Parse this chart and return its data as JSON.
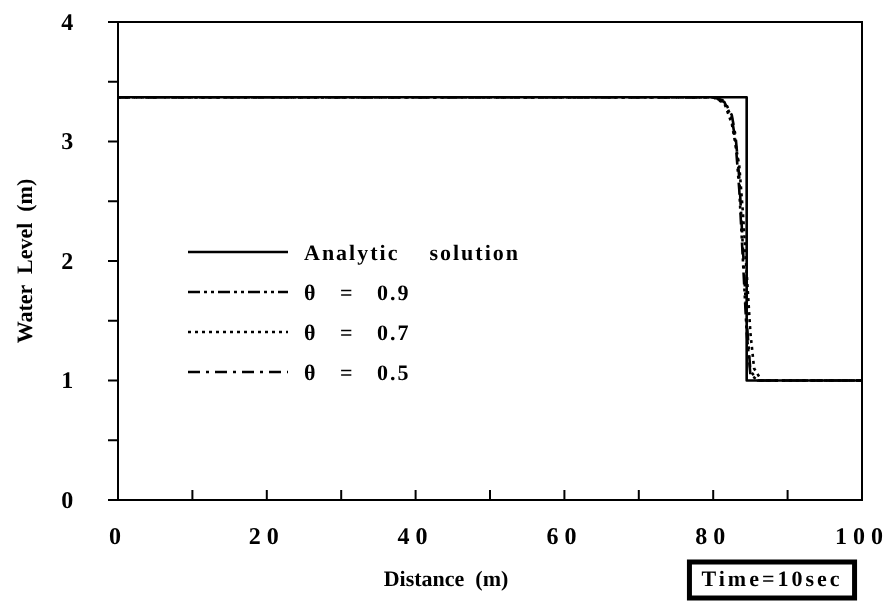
{
  "chart_data": {
    "type": "line",
    "xlabel": "Distance  (m)",
    "ylabel": "Water  Level  (m)",
    "xlim": [
      0,
      100
    ],
    "xticks": [
      0,
      {
        "value": 10,
        "label": null
      },
      20,
      {
        "value": 30,
        "label": null
      },
      40,
      {
        "value": 50,
        "label": null
      },
      60,
      {
        "value": 70,
        "label": null
      },
      80,
      {
        "value": 90,
        "label": null
      },
      100
    ],
    "ylim": [
      0,
      4
    ],
    "yticks": [
      0,
      {
        "value": 0.5,
        "label": null
      },
      1,
      {
        "value": 1.5,
        "label": null
      },
      2,
      {
        "value": 2.5,
        "label": null
      },
      3,
      {
        "value": 3.5,
        "label": null
      },
      4
    ],
    "grid": false,
    "legend": "left",
    "marker": "none",
    "annotations": [
      "Time=10sec"
    ],
    "series": [
      {
        "name": "Analytic    solution",
        "color": "#000000",
        "line_style": "solid",
        "x": [
          0,
          84.5,
          84.5,
          100
        ],
        "values": [
          3.37,
          3.37,
          1,
          1
        ]
      },
      {
        "name": "θ   =   0.9",
        "color": "#000000",
        "line_style": "dashdotdot",
        "x": [
          0,
          80,
          81.5,
          82.5,
          83,
          83.5,
          84,
          84.5,
          85,
          86,
          100
        ],
        "values": [
          3.37,
          3.37,
          3.33,
          3.2,
          3.0,
          2.6,
          2.0,
          1.4,
          1.05,
          1,
          1
        ]
      },
      {
        "name": "θ   =   0.7",
        "color": "#000000",
        "line_style": "dotted",
        "x": [
          0,
          80,
          81.5,
          82.5,
          83.5,
          84,
          84.5,
          85,
          85.5,
          86.5,
          100
        ],
        "values": [
          3.37,
          3.37,
          3.32,
          3.15,
          2.8,
          2.4,
          1.9,
          1.4,
          1.1,
          1,
          1
        ]
      },
      {
        "name": "θ   =   0.5",
        "color": "#000000",
        "line_style": "dashdot",
        "x": [
          0,
          80,
          81.5,
          82.5,
          83,
          83.5,
          84,
          84.5,
          85,
          86,
          100
        ],
        "values": [
          3.37,
          3.37,
          3.34,
          3.22,
          3.05,
          2.7,
          2.1,
          1.5,
          1.08,
          1,
          1
        ]
      }
    ]
  }
}
